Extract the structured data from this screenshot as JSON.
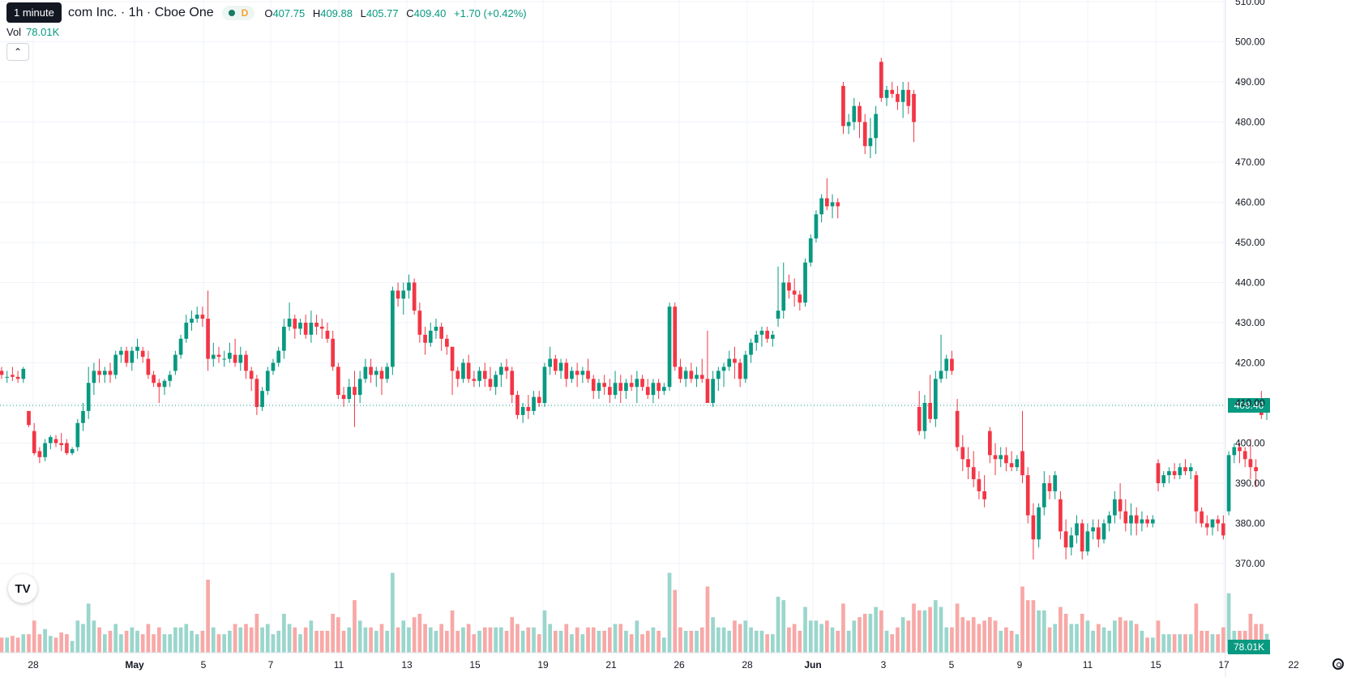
{
  "legend": {
    "title": "com Inc. · 1h · Cboe One",
    "tooltip": "1 minute",
    "interval_badge": "D",
    "o_label": "O",
    "o_value": "407.75",
    "h_label": "H",
    "h_value": "409.88",
    "l_label": "L",
    "l_value": "405.77",
    "c_label": "C",
    "c_value": "409.40",
    "change": "+1.70 (+0.42%)",
    "vol_label": "Vol",
    "vol_value": "78.01K"
  },
  "colors": {
    "up": "#089981",
    "down": "#f23645",
    "vol_up": "#9ad6cc",
    "vol_down": "#f7a9a7",
    "grid": "#f0f3fa",
    "text": "#131722",
    "price_line": "#089981"
  },
  "icons": {
    "collapse": "chevron-up-icon",
    "logo": "tradingview-logo-icon",
    "settings": "gear-icon"
  },
  "chart_data": {
    "type": "candlestick",
    "interval": "1h",
    "y_ticks": [
      "510.00",
      "500.00",
      "490.00",
      "480.00",
      "470.00",
      "460.00",
      "450.00",
      "440.00",
      "430.00",
      "420.00",
      "410.00",
      "400.00",
      "390.00",
      "380.00",
      "370.00"
    ],
    "ylim": [
      362,
      511
    ],
    "x_ticks": [
      "28",
      "May",
      "5",
      "7",
      "11",
      "13",
      "15",
      "19",
      "21",
      "26",
      "28",
      "Jun",
      "3",
      "5",
      "9",
      "11",
      "15",
      "17",
      "22"
    ],
    "last_price": "409.40",
    "last_price_value": 409.4,
    "volume_label": "78.01K",
    "ohlc": [
      [
        418,
        419,
        416,
        417
      ],
      [
        416.5,
        418,
        415,
        416.5
      ],
      [
        417,
        419,
        415.5,
        416.5
      ],
      [
        416.5,
        418,
        415,
        416
      ],
      [
        416,
        419,
        415,
        418.5
      ],
      [
        408,
        408,
        404,
        404.5
      ],
      [
        403,
        405,
        397,
        397.5
      ],
      [
        398,
        399,
        395,
        396.5
      ],
      [
        396.5,
        401,
        395.5,
        400
      ],
      [
        400,
        402,
        398.5,
        401.5
      ],
      [
        401,
        402,
        399,
        400
      ],
      [
        400,
        402.5,
        398,
        399.5
      ],
      [
        400,
        401,
        397,
        397.5
      ],
      [
        397.5,
        399,
        397,
        398.5
      ],
      [
        399,
        406,
        398,
        405
      ],
      [
        405,
        410,
        403,
        408
      ],
      [
        408,
        419,
        406,
        415
      ],
      [
        415,
        420,
        412,
        418
      ],
      [
        418,
        421,
        415,
        417
      ],
      [
        417,
        419,
        415,
        418
      ],
      [
        418,
        420,
        415,
        417
      ],
      [
        417,
        423,
        416,
        422
      ],
      [
        422,
        424,
        420,
        423
      ],
      [
        423,
        424,
        419,
        420
      ],
      [
        420,
        424,
        418,
        423
      ],
      [
        423,
        426,
        421,
        424
      ],
      [
        423,
        424,
        420,
        421.5
      ],
      [
        421,
        423,
        416,
        417
      ],
      [
        417,
        418,
        414,
        415
      ],
      [
        415,
        416,
        410,
        414
      ],
      [
        414,
        416,
        412,
        415.5
      ],
      [
        415.5,
        418,
        414,
        417
      ],
      [
        418,
        423,
        417,
        422
      ],
      [
        422,
        427,
        421,
        426
      ],
      [
        426,
        432,
        425,
        430
      ],
      [
        430,
        433,
        428,
        431
      ],
      [
        431,
        434,
        430,
        432
      ],
      [
        432,
        434,
        429,
        431
      ],
      [
        431,
        438,
        418,
        421
      ],
      [
        421,
        425,
        419,
        422
      ],
      [
        422,
        424,
        420,
        421.5
      ],
      [
        421,
        423,
        419,
        421
      ],
      [
        421,
        425,
        420,
        422.5
      ],
      [
        422,
        426,
        419,
        420
      ],
      [
        420,
        424,
        418,
        422
      ],
      [
        422,
        423,
        416,
        418
      ],
      [
        418,
        419,
        413,
        416
      ],
      [
        416,
        417,
        407,
        409
      ],
      [
        409,
        414,
        408,
        413
      ],
      [
        413,
        419,
        412,
        418
      ],
      [
        418,
        421,
        417,
        420
      ],
      [
        420,
        424,
        419,
        423
      ],
      [
        423,
        431,
        421,
        429
      ],
      [
        429,
        435,
        428,
        431
      ],
      [
        431,
        432,
        426,
        428.5
      ],
      [
        428.5,
        431,
        427,
        430
      ],
      [
        430,
        432,
        426,
        427
      ],
      [
        427,
        433,
        425,
        430
      ],
      [
        430,
        432,
        427,
        429
      ],
      [
        429,
        431,
        426,
        428.5
      ],
      [
        428,
        430,
        425,
        426
      ],
      [
        426,
        428,
        418,
        419
      ],
      [
        419,
        420,
        411,
        412
      ],
      [
        412,
        414,
        409,
        411
      ],
      [
        411,
        416,
        410,
        414
      ],
      [
        414,
        418,
        404,
        412
      ],
      [
        412,
        418,
        410,
        416
      ],
      [
        416,
        421,
        415,
        419
      ],
      [
        419,
        421,
        415,
        417
      ],
      [
        417,
        419,
        414,
        418
      ],
      [
        418,
        419,
        412,
        416
      ],
      [
        416,
        420,
        415,
        419
      ],
      [
        419,
        439,
        417,
        438
      ],
      [
        438,
        440,
        434,
        436
      ],
      [
        436,
        440,
        432,
        438
      ],
      [
        438,
        442,
        436,
        440
      ],
      [
        440,
        441,
        432,
        433
      ],
      [
        433,
        435,
        425,
        427
      ],
      [
        427,
        429,
        422,
        425
      ],
      [
        425,
        430,
        424,
        428
      ],
      [
        428,
        431,
        426,
        429
      ],
      [
        429,
        430,
        423,
        426
      ],
      [
        426,
        427,
        422,
        424
      ],
      [
        424,
        423,
        412,
        418
      ],
      [
        418,
        419,
        414,
        416
      ],
      [
        416,
        421,
        415,
        420
      ],
      [
        420,
        422,
        415,
        416
      ],
      [
        416,
        418,
        414,
        415.5
      ],
      [
        415.5,
        419,
        414,
        418
      ],
      [
        418,
        420,
        414,
        416
      ],
      [
        416,
        419,
        413,
        414
      ],
      [
        414,
        418,
        412,
        417
      ],
      [
        417,
        420,
        414,
        419
      ],
      [
        419,
        421,
        416,
        418
      ],
      [
        418,
        419,
        410,
        412
      ],
      [
        412,
        413,
        406,
        407
      ],
      [
        407,
        410,
        405,
        409
      ],
      [
        409,
        412,
        406,
        408
      ],
      [
        408,
        413,
        407,
        411.5
      ],
      [
        411.5,
        413,
        409,
        410
      ],
      [
        410,
        420,
        409,
        419
      ],
      [
        419,
        424,
        417,
        421
      ],
      [
        421,
        422,
        417,
        418
      ],
      [
        418,
        421,
        416,
        420
      ],
      [
        420,
        421,
        414,
        416
      ],
      [
        416,
        419,
        415,
        418
      ],
      [
        418,
        420,
        414,
        417
      ],
      [
        417,
        419,
        415,
        418
      ],
      [
        418,
        421,
        415,
        416
      ],
      [
        416,
        417,
        411,
        413
      ],
      [
        413,
        416,
        411,
        415
      ],
      [
        415,
        417,
        412,
        414
      ],
      [
        414,
        416,
        410,
        412
      ],
      [
        412,
        418,
        411,
        415
      ],
      [
        415,
        417,
        410,
        413
      ],
      [
        413,
        416,
        411,
        415
      ],
      [
        415,
        417,
        413,
        414
      ],
      [
        414,
        418,
        410,
        416
      ],
      [
        416,
        417,
        413,
        414
      ],
      [
        414,
        416,
        411,
        412
      ],
      [
        412,
        416,
        410,
        415
      ],
      [
        415,
        416,
        411,
        413
      ],
      [
        413,
        415,
        412,
        414
      ],
      [
        414,
        435,
        413,
        434
      ],
      [
        434,
        435,
        418,
        419
      ],
      [
        419,
        421,
        415,
        416
      ],
      [
        416,
        419,
        414,
        418
      ],
      [
        418,
        420,
        415,
        416
      ],
      [
        416,
        419,
        414,
        417
      ],
      [
        417,
        421,
        415,
        416
      ],
      [
        416,
        428,
        410,
        410
      ],
      [
        410,
        418,
        409,
        416
      ],
      [
        416,
        419,
        413,
        418
      ],
      [
        418,
        420,
        414,
        419
      ],
      [
        419,
        423,
        418,
        421
      ],
      [
        421,
        424,
        416,
        420
      ],
      [
        420,
        421,
        414,
        416
      ],
      [
        416,
        423,
        415,
        422
      ],
      [
        422,
        426,
        420,
        425
      ],
      [
        425,
        428,
        423,
        427
      ],
      [
        427,
        429,
        424,
        428
      ],
      [
        428,
        429,
        425,
        426
      ],
      [
        426,
        428,
        424,
        427
      ],
      [
        431,
        444,
        429,
        433
      ],
      [
        433,
        445,
        431,
        440
      ],
      [
        440,
        442,
        436,
        438
      ],
      [
        438,
        441,
        434,
        437
      ],
      [
        437,
        438,
        433,
        435
      ],
      [
        435,
        446,
        434,
        445
      ],
      [
        445,
        452,
        444,
        451
      ],
      [
        451,
        458,
        450,
        457
      ],
      [
        457,
        462,
        455,
        461
      ],
      [
        461,
        466,
        458,
        459
      ],
      [
        459,
        462,
        456,
        460
      ],
      [
        460,
        461,
        456,
        459
      ],
      [
        489,
        490,
        477,
        479
      ],
      [
        479,
        482,
        477,
        480
      ],
      [
        480,
        486,
        478,
        484
      ],
      [
        484,
        485,
        476,
        480
      ],
      [
        480,
        482,
        472,
        474
      ],
      [
        474,
        481,
        471,
        476
      ],
      [
        476,
        484,
        472,
        482
      ],
      [
        495,
        496,
        485,
        486
      ],
      [
        486,
        489,
        484,
        488
      ],
      [
        488,
        490,
        486,
        487
      ],
      [
        487,
        489,
        483,
        485
      ],
      [
        485,
        490,
        481,
        488
      ],
      [
        488,
        490,
        482,
        484
      ],
      [
        487,
        488,
        475,
        480
      ],
      [
        409,
        413,
        402,
        403
      ],
      [
        403,
        412,
        401,
        410
      ],
      [
        410,
        417,
        405,
        406
      ],
      [
        406,
        418,
        404,
        416
      ],
      [
        416,
        427,
        415,
        418
      ],
      [
        418,
        422,
        416,
        421
      ],
      [
        421,
        423,
        417,
        418
      ],
      [
        408,
        411,
        398,
        399
      ],
      [
        399,
        402,
        393,
        396
      ],
      [
        396,
        399,
        391,
        394
      ],
      [
        394,
        398,
        389,
        391
      ],
      [
        391,
        393,
        386,
        388
      ],
      [
        388,
        392,
        384,
        386
      ],
      [
        403,
        404,
        395,
        397
      ],
      [
        397,
        400,
        392,
        396
      ],
      [
        396,
        399,
        394,
        397
      ],
      [
        397,
        399,
        393,
        395
      ],
      [
        395,
        398,
        393,
        394
      ],
      [
        394,
        397,
        393,
        396
      ],
      [
        398,
        408,
        390,
        392
      ],
      [
        392,
        394,
        380,
        382
      ],
      [
        382,
        385,
        371,
        376
      ],
      [
        376,
        385,
        374,
        384
      ],
      [
        384,
        393,
        382,
        390
      ],
      [
        390,
        392,
        386,
        388
      ],
      [
        388,
        393,
        386,
        392
      ],
      [
        386,
        388,
        376,
        378
      ],
      [
        378,
        381,
        371,
        374
      ],
      [
        374,
        379,
        372,
        377
      ],
      [
        377,
        382,
        375,
        380
      ],
      [
        380,
        381,
        371,
        373
      ],
      [
        373,
        380,
        372,
        378
      ],
      [
        378,
        381,
        376,
        379
      ],
      [
        379,
        381,
        374,
        376
      ],
      [
        376,
        381,
        375,
        380
      ],
      [
        380,
        383,
        378,
        382
      ],
      [
        382,
        388,
        380,
        386
      ],
      [
        386,
        390,
        381,
        383
      ],
      [
        383,
        386,
        378,
        380
      ],
      [
        380,
        385,
        377,
        382
      ],
      [
        382,
        384,
        377,
        380
      ],
      [
        380,
        383,
        378,
        381
      ],
      [
        381,
        382,
        379,
        380
      ],
      [
        380,
        382,
        379,
        381
      ],
      [
        395,
        396,
        388,
        390
      ],
      [
        390,
        393,
        389,
        392
      ],
      [
        392,
        394,
        390,
        393
      ],
      [
        393,
        395,
        391,
        392
      ],
      [
        392,
        395,
        391,
        394
      ],
      [
        394,
        396,
        392,
        393
      ],
      [
        393,
        395,
        391,
        394
      ],
      [
        392,
        393,
        380,
        383
      ],
      [
        383,
        384,
        379,
        380
      ],
      [
        380,
        382,
        377,
        379
      ],
      [
        379,
        381,
        377,
        381
      ],
      [
        381,
        382,
        378,
        380
      ],
      [
        380,
        382,
        376,
        377
      ],
      [
        383,
        398,
        382,
        397
      ],
      [
        397,
        400,
        395,
        399
      ],
      [
        399,
        400,
        395,
        398
      ],
      [
        398,
        399,
        394,
        396
      ],
      [
        396,
        401,
        391,
        394
      ],
      [
        394,
        396,
        389,
        393
      ],
      [
        409,
        413,
        406,
        407
      ],
      [
        407.75,
        409.88,
        405.77,
        409.4
      ]
    ],
    "volume_up_ratio_note": ""
  }
}
